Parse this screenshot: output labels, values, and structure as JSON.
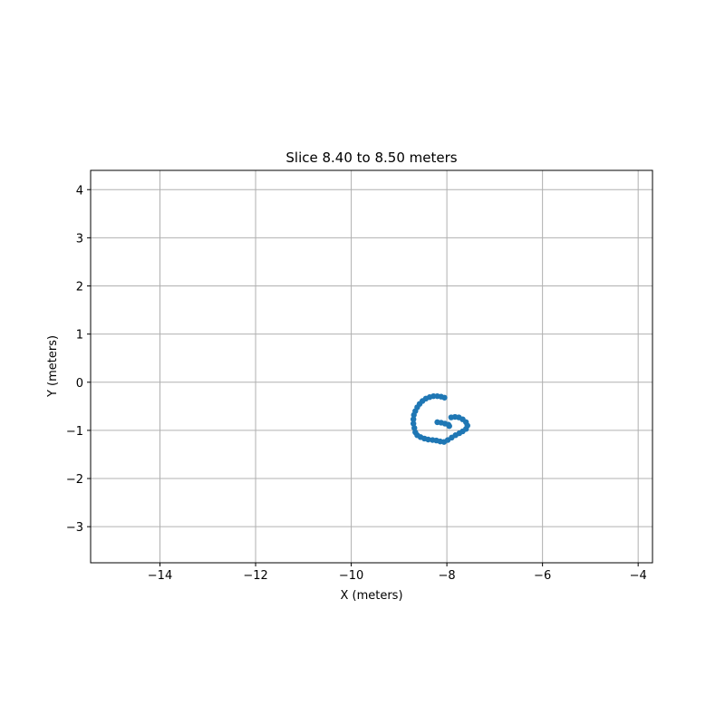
{
  "chart_data": {
    "type": "scatter",
    "title": "Slice 8.40 to 8.50 meters",
    "xlabel": "X (meters)",
    "ylabel": "Y (meters)",
    "xlim": [
      -15.45,
      -3.7
    ],
    "ylim": [
      -3.75,
      4.4
    ],
    "xticks": [
      -14,
      -12,
      -10,
      -8,
      -6,
      -4
    ],
    "yticks": [
      -3,
      -2,
      -1,
      0,
      1,
      2,
      3,
      4
    ],
    "xtick_labels": [
      "−14",
      "−12",
      "−10",
      "−8",
      "−6",
      "−4"
    ],
    "ytick_labels": [
      "−3",
      "−2",
      "−1",
      "0",
      "1",
      "2",
      "3",
      "4"
    ],
    "grid": true,
    "marker_color": "#1f77b4",
    "series": [
      {
        "points": [
          [
            -8.05,
            -0.32
          ],
          [
            -8.12,
            -0.3
          ],
          [
            -8.2,
            -0.29
          ],
          [
            -8.28,
            -0.29
          ],
          [
            -8.36,
            -0.31
          ],
          [
            -8.44,
            -0.34
          ],
          [
            -8.51,
            -0.39
          ],
          [
            -8.57,
            -0.45
          ],
          [
            -8.62,
            -0.52
          ],
          [
            -8.66,
            -0.6
          ],
          [
            -8.69,
            -0.68
          ],
          [
            -8.7,
            -0.77
          ],
          [
            -8.7,
            -0.86
          ],
          [
            -8.68,
            -0.95
          ],
          [
            -8.66,
            -1.04
          ],
          [
            -8.62,
            -1.1
          ],
          [
            -8.55,
            -1.14
          ],
          [
            -8.47,
            -1.17
          ],
          [
            -8.39,
            -1.19
          ],
          [
            -8.3,
            -1.2
          ],
          [
            -8.22,
            -1.21
          ],
          [
            -8.14,
            -1.23
          ],
          [
            -8.06,
            -1.24
          ],
          [
            -7.98,
            -1.2
          ],
          [
            -7.9,
            -1.15
          ],
          [
            -7.82,
            -1.1
          ],
          [
            -7.74,
            -1.06
          ],
          [
            -7.67,
            -1.02
          ],
          [
            -7.6,
            -0.97
          ],
          [
            -7.57,
            -0.9
          ],
          [
            -7.6,
            -0.83
          ],
          [
            -7.67,
            -0.77
          ],
          [
            -7.75,
            -0.73
          ],
          [
            -7.83,
            -0.72
          ],
          [
            -7.91,
            -0.73
          ],
          [
            -8.2,
            -0.83
          ],
          [
            -8.12,
            -0.84
          ],
          [
            -8.04,
            -0.86
          ],
          [
            -7.97,
            -0.88
          ],
          [
            -7.95,
            -0.91
          ]
        ]
      }
    ]
  }
}
